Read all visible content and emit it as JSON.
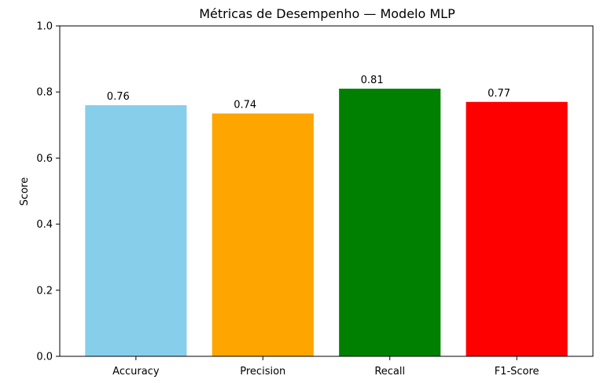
{
  "chart_data": {
    "type": "bar",
    "title": "Métricas de Desempenho — Modelo MLP",
    "xlabel": "",
    "ylabel": "Score",
    "ylim": [
      0,
      1.0
    ],
    "yticks": [
      "0.0",
      "0.2",
      "0.4",
      "0.6",
      "0.8",
      "1.0"
    ],
    "ytick_values": [
      0,
      0.2,
      0.4,
      0.6,
      0.8,
      1.0
    ],
    "categories": [
      "Accuracy",
      "Precision",
      "Recall",
      "F1-Score"
    ],
    "values": [
      0.76,
      0.735,
      0.81,
      0.77
    ],
    "value_labels": [
      "0.76",
      "0.74",
      "0.81",
      "0.77"
    ],
    "colors": [
      "#87ceeb",
      "#ffa500",
      "#008000",
      "#ff0000"
    ],
    "grid": false,
    "legend": "none"
  }
}
